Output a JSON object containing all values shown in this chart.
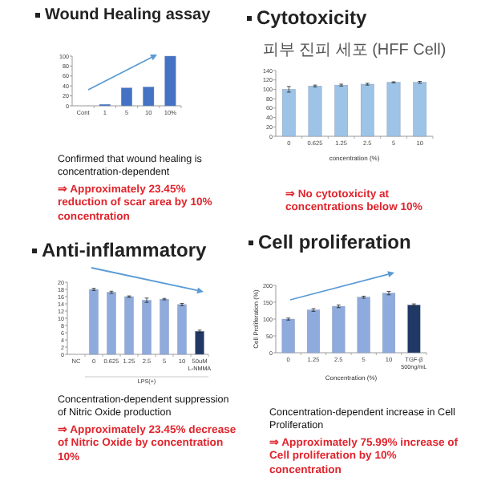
{
  "chart_data": [
    {
      "type": "bar",
      "title": "Wound Healing assay",
      "categories": [
        "Cont",
        "1",
        "5",
        "10",
        "10%"
      ],
      "values": [
        0,
        3,
        36,
        38,
        100
      ],
      "color": "#4472c4",
      "ylim": [
        0,
        100
      ],
      "yticks": [
        0,
        20,
        40,
        60,
        80,
        100
      ],
      "annotations": [
        "Confirmed that wound healing is concentration-dependent",
        "⇒ Approximately 23.45% reduction of scar area by 10% concentration"
      ]
    },
    {
      "type": "bar",
      "title": "Cytotoxicity",
      "subtitle": "피부 진피 세포 (HFF Cell)",
      "xlabel": "concentration (%)",
      "categories": [
        "0",
        "0.625",
        "1.25",
        "2.5",
        "5",
        "10"
      ],
      "values": [
        100,
        107,
        109,
        111,
        115,
        115
      ],
      "errors": [
        6,
        2,
        2,
        2,
        1,
        2
      ],
      "color": "#9dc3e6",
      "ylim": [
        0,
        140
      ],
      "yticks": [
        0,
        20,
        40,
        60,
        80,
        100,
        120,
        140
      ],
      "annotations": [
        "⇒ No cytotoxicity at concentrations below 10%"
      ]
    },
    {
      "type": "bar",
      "title": "Anti-inflammatory",
      "categories": [
        "NC",
        "0",
        "0.625",
        "1.25",
        "2.5",
        "5",
        "10",
        "50uM"
      ],
      "values": [
        0,
        18,
        17.2,
        16,
        15,
        15.3,
        13.8,
        6.4
      ],
      "errors": [
        null,
        0.3,
        0.3,
        0.2,
        0.6,
        0.2,
        0.3,
        0.3
      ],
      "colors": [
        "#8faadc",
        "#8faadc",
        "#8faadc",
        "#8faadc",
        "#8faadc",
        "#8faadc",
        "#8faadc",
        "#203864"
      ],
      "ylim": [
        0,
        20
      ],
      "yticks": [
        0,
        2,
        4,
        6,
        8,
        10,
        12,
        14,
        16,
        18,
        20
      ],
      "annotations": [
        "Concentration-dependent suppression of Nitric Oxide production",
        "⇒ Approximately 23.45% decrease of Nitric Oxide by concentration 10%",
        "L-NMMA",
        "LPS(+)"
      ]
    },
    {
      "type": "bar",
      "title": "Cell proliferation",
      "ylabel": "Cell Proliferation (%)",
      "xlabel": "Concentration (%)",
      "categories": [
        "0",
        "1.25",
        "2.5",
        "5",
        "10",
        "TGF-β"
      ],
      "values": [
        100,
        127,
        138,
        165,
        177,
        142
      ],
      "errors": [
        3,
        4,
        4,
        3,
        5,
        3
      ],
      "colors": [
        "#8faadc",
        "#8faadc",
        "#8faadc",
        "#8faadc",
        "#8faadc",
        "#203864"
      ],
      "ylim": [
        0,
        200
      ],
      "yticks": [
        0,
        50,
        100,
        150,
        200
      ],
      "annotations": [
        "Concentration-dependent increase in Cell Proliferation",
        "⇒ Approximately 75.99% increase of Cell proliferation by 10% concentration",
        "500ng/mL"
      ]
    }
  ]
}
